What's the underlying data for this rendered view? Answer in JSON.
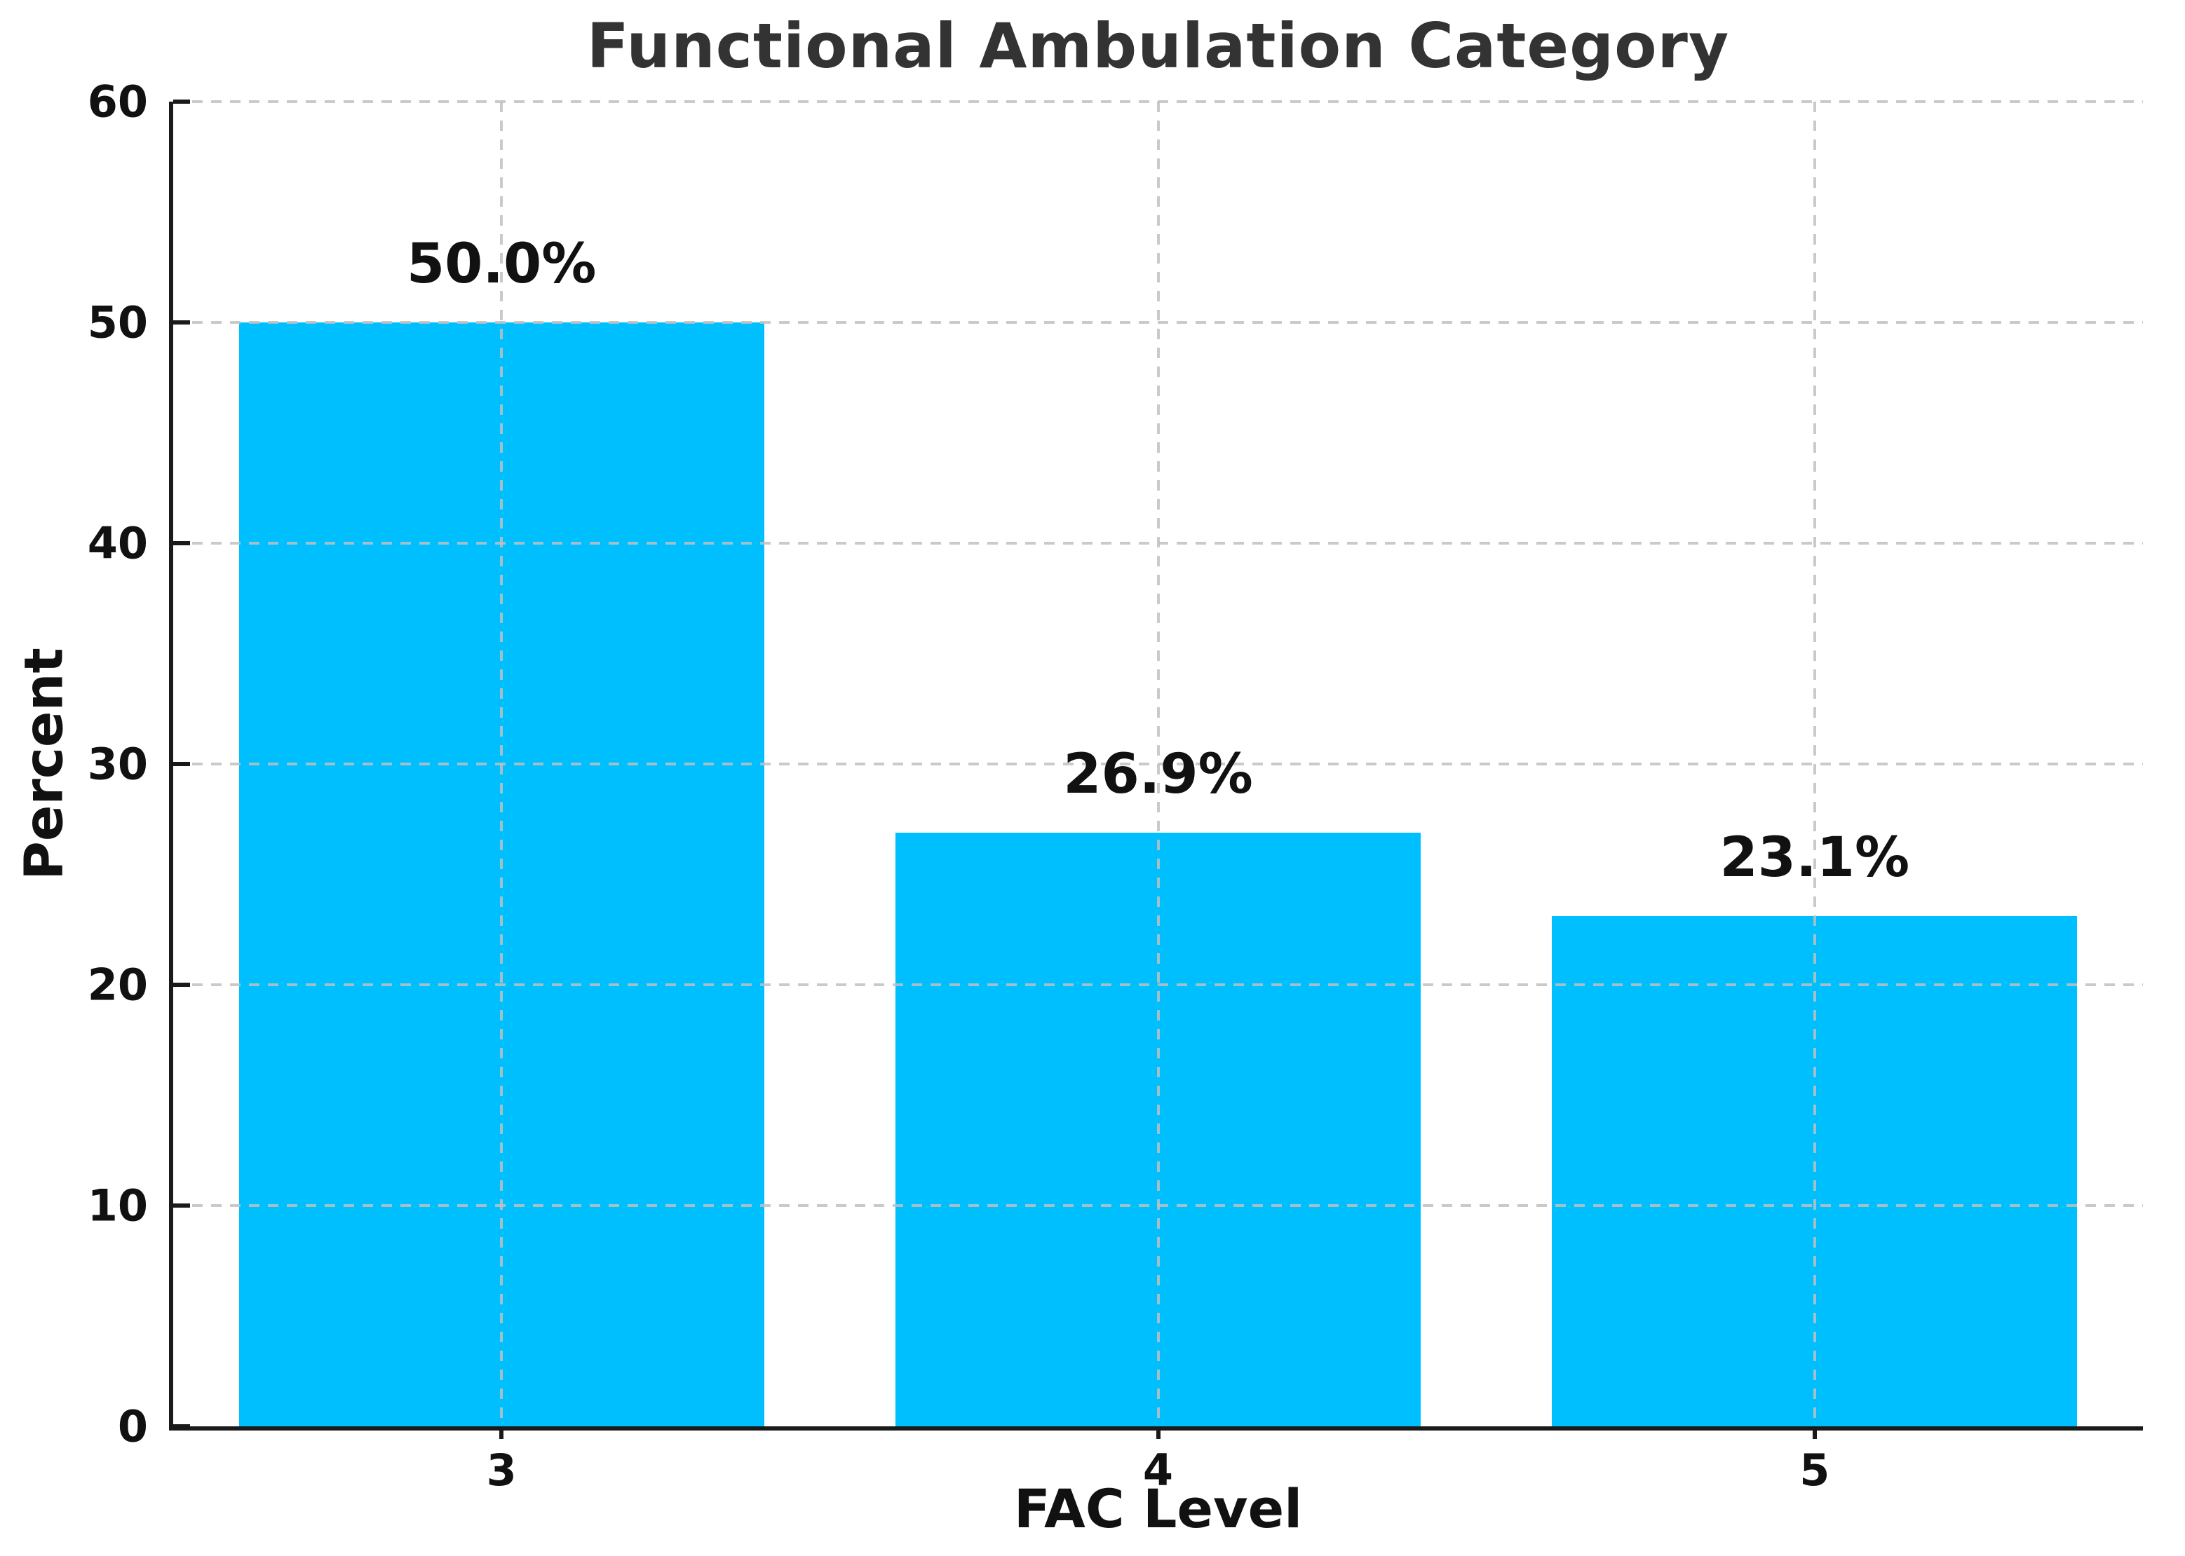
{
  "chart_data": {
    "type": "bar",
    "title": "Functional Ambulation Category",
    "xlabel": "FAC Level",
    "ylabel": "Percent",
    "categories": [
      "3",
      "4",
      "5"
    ],
    "values": [
      50.0,
      26.9,
      23.1
    ],
    "value_labels": [
      "50.0%",
      "26.9%",
      "23.1%"
    ],
    "ylim": [
      0,
      60
    ],
    "yticks": [
      0,
      10,
      20,
      30,
      40,
      50,
      60
    ],
    "grid": "dashed, horizontal and vertical, drawn above bars",
    "legend_position": "none",
    "colors": {
      "bar": "#00BFFF",
      "title_text": "#333333",
      "tick_text": "#111111",
      "axis": "#1a1a1a",
      "grid": "#c0c0c0"
    },
    "bar_width_fraction": 0.8
  }
}
